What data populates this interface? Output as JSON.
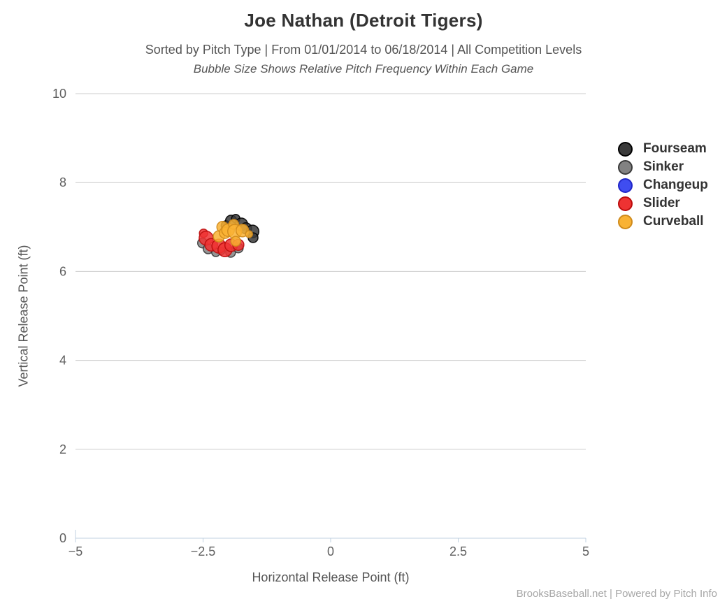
{
  "footer": {
    "credit": "BrooksBaseball.net | Powered by Pitch Info"
  },
  "colors": {
    "background": "#ffffff",
    "gridline": "#cccccc",
    "axis_line": "#c0d0e0",
    "tick_label": "#606060",
    "axis_title": "#555555",
    "chart_title": "#333333",
    "legend_text": "#333333",
    "footer_text": "#a6a6a6"
  },
  "chart_data": {
    "type": "scatter",
    "variant": "bubble",
    "title": "Joe Nathan (Detroit Tigers)",
    "subtitle": "Sorted by Pitch Type | From 01/01/2014 to 06/18/2014 | All Competition Levels",
    "note": "Bubble Size Shows Relative Pitch Frequency Within Each Game",
    "xlabel": "Horizontal Release Point (ft)",
    "ylabel": "Vertical Release Point (ft)",
    "xlim": [
      -5,
      5
    ],
    "ylim": [
      0,
      10
    ],
    "grid": "horizontal-only",
    "legend_position": "right",
    "x_ticks": [
      {
        "value": -5,
        "label": "−5"
      },
      {
        "value": -2.5,
        "label": "−2.5"
      },
      {
        "value": 0,
        "label": "0"
      },
      {
        "value": 2.5,
        "label": "2.5"
      },
      {
        "value": 5,
        "label": "5"
      }
    ],
    "y_ticks": [
      {
        "value": 0,
        "label": "0"
      },
      {
        "value": 2,
        "label": "2"
      },
      {
        "value": 4,
        "label": "4"
      },
      {
        "value": 6,
        "label": "6"
      },
      {
        "value": 8,
        "label": "8"
      },
      {
        "value": 10,
        "label": "10"
      }
    ],
    "size_meaning": "relative pitch frequency within each game",
    "series": [
      {
        "name": "Fourseam",
        "color": "#3a3a3a",
        "border": "#000000",
        "points": [
          {
            "x": -2.05,
            "y": 7.03,
            "size": 7
          },
          {
            "x": -1.95,
            "y": 7.14,
            "size": 8
          },
          {
            "x": -1.86,
            "y": 7.19,
            "size": 6
          },
          {
            "x": -1.75,
            "y": 7.06,
            "size": 9
          },
          {
            "x": -1.66,
            "y": 6.97,
            "size": 8
          },
          {
            "x": -1.53,
            "y": 6.9,
            "size": 9
          },
          {
            "x": -1.52,
            "y": 6.76,
            "size": 7
          }
        ]
      },
      {
        "name": "Sinker",
        "color": "#828282",
        "border": "#3a3a3a",
        "points": [
          {
            "x": -2.51,
            "y": 6.64,
            "size": 7
          },
          {
            "x": -2.4,
            "y": 6.51,
            "size": 7
          },
          {
            "x": -2.25,
            "y": 6.43,
            "size": 6
          },
          {
            "x": -2.14,
            "y": 6.46,
            "size": 5
          },
          {
            "x": -1.96,
            "y": 6.43,
            "size": 7
          },
          {
            "x": -1.81,
            "y": 6.53,
            "size": 7
          }
        ]
      },
      {
        "name": "Changeup",
        "color": "#3f4df0",
        "border": "#2026c8",
        "points": []
      },
      {
        "name": "Slider",
        "color": "#ee3232",
        "border": "#bb0c0c",
        "points": [
          {
            "x": -2.49,
            "y": 6.86,
            "size": 6
          },
          {
            "x": -2.44,
            "y": 6.75,
            "size": 10
          },
          {
            "x": -2.34,
            "y": 6.6,
            "size": 9
          },
          {
            "x": -2.19,
            "y": 6.57,
            "size": 10
          },
          {
            "x": -2.07,
            "y": 6.49,
            "size": 10
          },
          {
            "x": -1.95,
            "y": 6.59,
            "size": 9
          },
          {
            "x": -1.81,
            "y": 6.6,
            "size": 8
          }
        ]
      },
      {
        "name": "Curveball",
        "color": "#f9b233",
        "border": "#cf8a1b",
        "points": [
          {
            "x": -2.19,
            "y": 6.79,
            "size": 8
          },
          {
            "x": -2.12,
            "y": 7.0,
            "size": 8
          },
          {
            "x": -2.07,
            "y": 6.87,
            "size": 8
          },
          {
            "x": -2.01,
            "y": 6.93,
            "size": 9
          },
          {
            "x": -1.9,
            "y": 7.06,
            "size": 7
          },
          {
            "x": -1.88,
            "y": 6.9,
            "size": 10
          },
          {
            "x": -1.86,
            "y": 6.68,
            "size": 7
          },
          {
            "x": -1.73,
            "y": 6.92,
            "size": 9
          },
          {
            "x": -1.6,
            "y": 6.84,
            "size": 5
          }
        ]
      }
    ]
  }
}
